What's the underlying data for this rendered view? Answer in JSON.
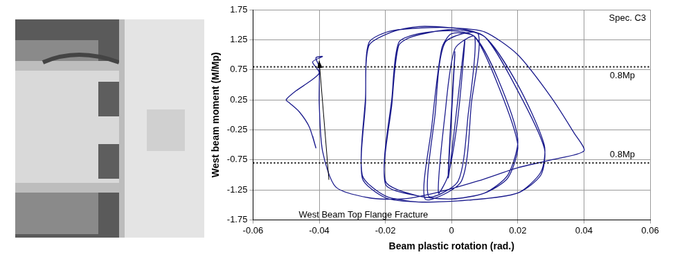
{
  "chart_data": {
    "type": "line",
    "x_label": "Beam plastic rotation (rad.)",
    "y_label": "West beam moment (M/Mp)",
    "color": "#1a1a8c",
    "marker": "none",
    "line_style": "solid",
    "x": [
      0,
      0.001,
      -0.001,
      0.001,
      -0.001,
      0.004,
      0.002,
      -0.001,
      -0.004,
      -0.002,
      0.001,
      0.007,
      0.005,
      0.002,
      -0.007,
      -0.005,
      -0.002,
      0.008,
      0.006,
      0.003,
      -0.008,
      -0.006,
      -0.003,
      0,
      0.007,
      0.014,
      0.02,
      0.017,
      0.01,
      0,
      -0.01,
      -0.02,
      -0.018,
      -0.016,
      -0.01,
      0,
      0.007,
      0.014,
      0.02,
      0.017,
      0.01,
      0,
      -0.01,
      -0.02,
      -0.018,
      -0.016,
      -0.012,
      0,
      0.01,
      0.02,
      0.028,
      0.027,
      0.02,
      0.005,
      -0.01,
      -0.02,
      -0.027,
      -0.026,
      -0.025,
      -0.018,
      0,
      0.01,
      0.02,
      0.028,
      0.027,
      0.02,
      0.005,
      -0.01,
      -0.02,
      -0.027,
      -0.026,
      -0.025,
      -0.018,
      -0.01,
      0,
      0.01,
      0.02,
      0.03,
      0.037,
      0.04,
      0.03,
      0.02,
      0.008,
      -0.005,
      -0.015,
      -0.025,
      -0.035,
      -0.039,
      -0.04,
      -0.04,
      -0.041,
      -0.039,
      -0.042,
      -0.04,
      -0.043,
      -0.047,
      -0.05,
      -0.049,
      -0.046,
      -0.043,
      -0.041,
      -0.042
    ],
    "values": [
      0,
      1.0,
      -1.0,
      1.05,
      -1.05,
      1.25,
      0,
      -1.0,
      -1.3,
      0,
      1.1,
      1.3,
      0,
      -1.1,
      -1.35,
      0,
      1.2,
      1.35,
      0.2,
      -1.1,
      -1.4,
      -0.2,
      1.1,
      1.35,
      1.3,
      0.6,
      -0.4,
      -1.0,
      -1.3,
      -1.4,
      -1.35,
      -1.1,
      0.3,
      1.2,
      1.35,
      1.4,
      1.3,
      0.5,
      -0.5,
      -1.05,
      -1.3,
      -1.4,
      -1.35,
      -1.15,
      0.2,
      1.15,
      1.3,
      1.42,
      1.3,
      0.5,
      -0.5,
      -0.95,
      -1.3,
      -1.42,
      -1.45,
      -1.35,
      -1.0,
      0.3,
      1.2,
      1.4,
      1.45,
      1.3,
      0.4,
      -0.55,
      -1.0,
      -1.3,
      -1.42,
      -1.45,
      -1.38,
      -1.05,
      0.2,
      1.15,
      1.38,
      1.47,
      1.45,
      1.38,
      1.0,
      0.3,
      -0.3,
      -0.6,
      -0.75,
      -0.88,
      -1.1,
      -1.3,
      -1.4,
      -1.38,
      -1.2,
      -0.6,
      0.2,
      0.8,
      0.95,
      0.97,
      0.88,
      0.7,
      0.55,
      0.4,
      0.25,
      0.2,
      0.05,
      -0.2,
      -0.55,
      -0.35
    ],
    "xlim": [
      -0.06,
      0.06
    ],
    "xticks": [
      -0.06,
      -0.04,
      -0.02,
      0,
      0.02,
      0.04,
      0.06
    ],
    "ylim": [
      -1.75,
      1.75
    ],
    "yticks": [
      -1.75,
      -1.25,
      -0.75,
      -0.25,
      0.25,
      0.75,
      1.25,
      1.75
    ],
    "grid": true,
    "reference_lines": [
      {
        "value": 0.8,
        "label": "0.8Mp",
        "line_style": "dotted",
        "color": "#000000"
      },
      {
        "value": -0.8,
        "label": "0.8Mp",
        "line_style": "dotted",
        "color": "#000000"
      }
    ],
    "annotations": [
      {
        "text": "Spec. C3"
      },
      {
        "text": "West Beam Top Flange Fracture",
        "x": -0.04,
        "y": 0.9,
        "marker": "arrow"
      }
    ]
  }
}
